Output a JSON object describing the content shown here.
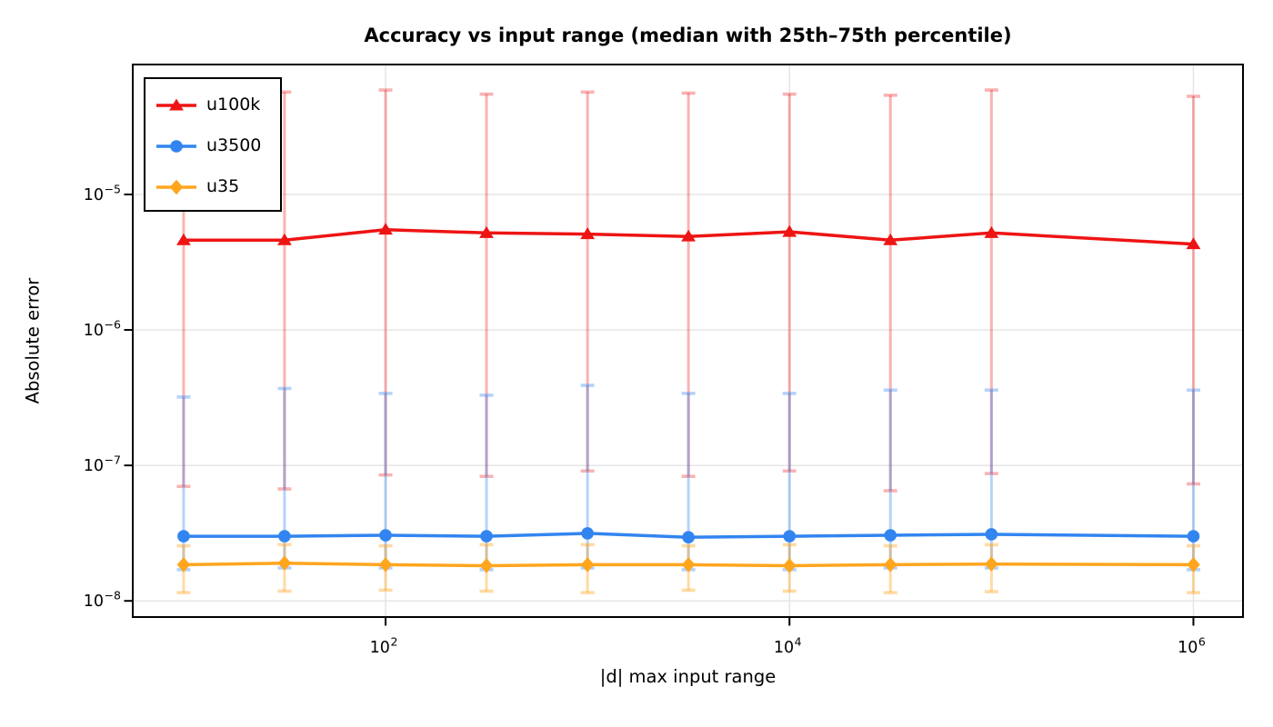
{
  "chart": {
    "title": "Accuracy vs input range (median with 25th–75th percentile)",
    "xlabel": "|d| max input range",
    "ylabel": "Absolute error",
    "background": "#ffffff",
    "grid_color": "#e3e3e3",
    "spine_color": "#000000"
  },
  "chart_data": {
    "type": "line",
    "x_scale": "log",
    "y_scale": "log",
    "grid": true,
    "legend_position": "upper-left",
    "x": [
      10,
      31.6,
      100,
      316,
      1000,
      3160,
      10000,
      31600,
      100000,
      1000000
    ],
    "series": [
      {
        "name": "u100k",
        "marker": "triangle",
        "color": "#ee1414",
        "whisker_color": "rgba(238,20,20,0.32)",
        "median": [
          4.6e-06,
          4.6e-06,
          5.5e-06,
          5.2e-06,
          5.1e-06,
          4.9e-06,
          5.3e-06,
          4.6e-06,
          5.2e-06,
          4.3e-06
        ],
        "q25": [
          7e-08,
          6.7e-08,
          8.5e-08,
          8.3e-08,
          9.1e-08,
          8.3e-08,
          9.1e-08,
          6.5e-08,
          8.7e-08,
          7.3e-08
        ],
        "q75": [
          5.8e-05,
          5.7e-05,
          5.9e-05,
          5.5e-05,
          5.7e-05,
          5.6e-05,
          5.5e-05,
          5.4e-05,
          5.9e-05,
          5.3e-05
        ]
      },
      {
        "name": "u3500",
        "marker": "circle",
        "color": "#3285f0",
        "whisker_color": "rgba(50,133,240,0.36)",
        "median": [
          3e-08,
          3e-08,
          3.05e-08,
          3e-08,
          3.15e-08,
          2.95e-08,
          3e-08,
          3.05e-08,
          3.1e-08,
          3e-08
        ],
        "q25": [
          1.7e-08,
          1.75e-08,
          1.75e-08,
          1.7e-08,
          1.75e-08,
          1.7e-08,
          1.7e-08,
          1.75e-08,
          1.75e-08,
          1.7e-08
        ],
        "q75": [
          3.2e-07,
          3.7e-07,
          3.4e-07,
          3.3e-07,
          3.9e-07,
          3.4e-07,
          3.4e-07,
          3.6e-07,
          3.6e-07,
          3.6e-07
        ]
      },
      {
        "name": "u35",
        "marker": "diamond",
        "color": "#ffa51e",
        "whisker_color": "rgba(255,165,30,0.40)",
        "median": [
          1.85e-08,
          1.9e-08,
          1.85e-08,
          1.82e-08,
          1.85e-08,
          1.85e-08,
          1.82e-08,
          1.85e-08,
          1.87e-08,
          1.85e-08
        ],
        "q25": [
          1.15e-08,
          1.18e-08,
          1.2e-08,
          1.18e-08,
          1.15e-08,
          1.2e-08,
          1.18e-08,
          1.15e-08,
          1.17e-08,
          1.15e-08
        ],
        "q75": [
          2.55e-08,
          2.6e-08,
          2.55e-08,
          2.6e-08,
          2.6e-08,
          2.55e-08,
          2.6e-08,
          2.55e-08,
          2.6e-08,
          2.55e-08
        ]
      }
    ],
    "x_ticks": [
      {
        "value": 100,
        "base": "10",
        "exponent": "2"
      },
      {
        "value": 10000,
        "base": "10",
        "exponent": "4"
      },
      {
        "value": 1000000,
        "base": "10",
        "exponent": "6"
      }
    ],
    "y_ticks": [
      {
        "value": 1e-05,
        "base": "10",
        "exponent": "−5"
      },
      {
        "value": 1e-06,
        "base": "10",
        "exponent": "−6"
      },
      {
        "value": 1e-07,
        "base": "10",
        "exponent": "−7"
      },
      {
        "value": 1e-08,
        "base": "10",
        "exponent": "−8"
      }
    ],
    "xlim": [
      5.6,
      1760000
    ],
    "ylim": [
      7.6e-09,
      9.1e-05
    ]
  }
}
